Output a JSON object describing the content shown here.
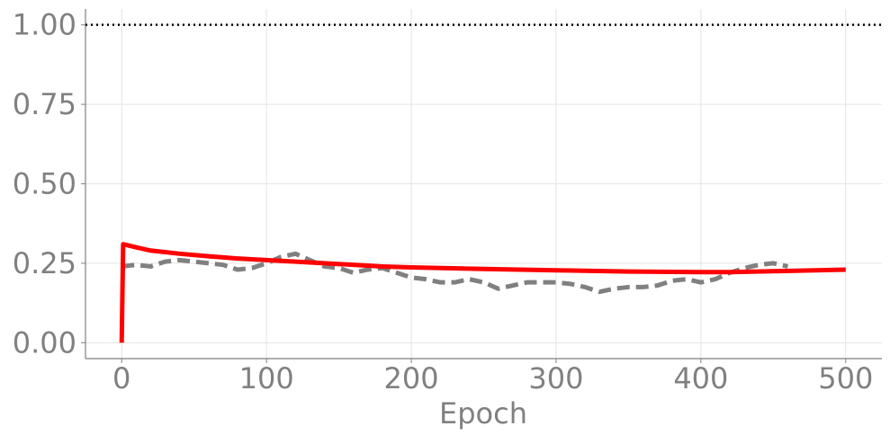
{
  "chart_data": {
    "type": "line",
    "x_label": "Epoch",
    "xlim": [
      -25,
      525
    ],
    "ylim": [
      -0.05,
      1.05
    ],
    "xticks": [
      0,
      100,
      200,
      300,
      400,
      500
    ],
    "yticks": [
      {
        "value": 0,
        "label": "0.00"
      },
      0.25,
      {
        "value": 0.5,
        "label": "0.50"
      },
      0.75,
      {
        "value": 1,
        "label": "1.00"
      }
    ],
    "grid": true,
    "reference_line": {
      "y": 1,
      "color": "#000000",
      "style": "dotted"
    },
    "series": [
      {
        "color": "#ff0000",
        "style": "solid",
        "x": [
          0,
          1,
          10,
          20,
          40,
          60,
          80,
          100,
          120,
          140,
          160,
          180,
          200,
          250,
          300,
          350,
          400,
          420,
          450,
          500
        ],
        "values": [
          0.0,
          0.31,
          0.3,
          0.29,
          0.28,
          0.272,
          0.265,
          0.26,
          0.255,
          0.25,
          0.245,
          0.24,
          0.237,
          0.232,
          0.228,
          0.224,
          0.222,
          0.222,
          0.225,
          0.23
        ]
      },
      {
        "color": "#808080",
        "style": "dashed",
        "x": [
          0,
          10,
          20,
          30,
          40,
          50,
          60,
          70,
          80,
          90,
          100,
          110,
          120,
          130,
          140,
          150,
          160,
          170,
          180,
          190,
          200,
          210,
          220,
          230,
          240,
          250,
          260,
          270,
          280,
          290,
          300,
          310,
          320,
          330,
          340,
          350,
          360,
          370,
          380,
          390,
          400,
          410,
          420,
          430,
          440,
          450,
          460
        ],
        "values": [
          0.24,
          0.245,
          0.24,
          0.255,
          0.26,
          0.255,
          0.25,
          0.245,
          0.23,
          0.235,
          0.25,
          0.27,
          0.28,
          0.26,
          0.24,
          0.235,
          0.22,
          0.23,
          0.235,
          0.22,
          0.205,
          0.2,
          0.19,
          0.19,
          0.2,
          0.19,
          0.17,
          0.18,
          0.19,
          0.19,
          0.19,
          0.185,
          0.175,
          0.16,
          0.17,
          0.175,
          0.175,
          0.18,
          0.195,
          0.2,
          0.19,
          0.2,
          0.22,
          0.235,
          0.245,
          0.25,
          0.24
        ]
      }
    ]
  }
}
